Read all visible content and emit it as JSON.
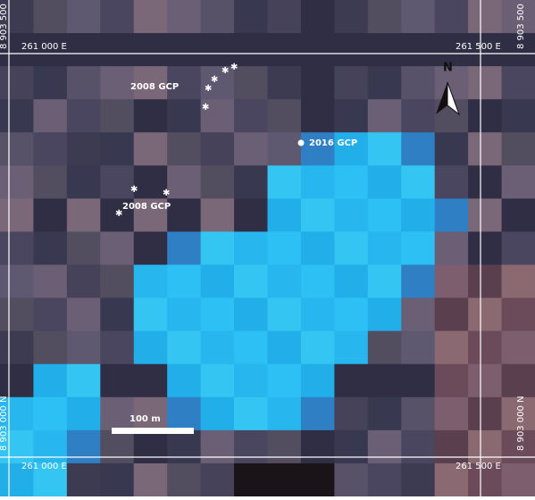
{
  "grid_labels": {
    "top_left_e": "261 000 E",
    "top_right_e": "261 500 E",
    "bottom_left_e": "261 000 E",
    "bottom_right_e": "261 500 E",
    "left_top_n": "8 903 500 N",
    "right_top_n": "8 903 500 N",
    "left_bottom_n": "8 903 000 N",
    "right_bottom_n": "8 903 000 N"
  },
  "north_arrow": "N",
  "points": [
    {
      "label": "2008 GCP"
    },
    {
      "label": "2016 GCP"
    },
    {
      "label": "2008 GCP"
    }
  ],
  "scale_bar": "100 m"
}
